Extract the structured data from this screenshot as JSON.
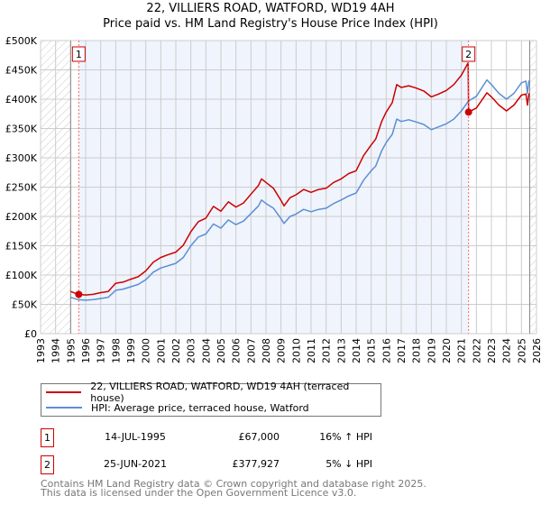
{
  "title_line1": "22, VILLIERS ROAD, WATFORD, WD19 4AH",
  "title_line2": "Price paid vs. HM Land Registry's House Price Index (HPI)",
  "legend": {
    "property": "22, VILLIERS ROAD, WATFORD, WD19 4AH (terraced house)",
    "hpi": "HPI: Average price, terraced house, Watford"
  },
  "transactions": [
    {
      "num": "1",
      "date": "14-JUL-1995",
      "price": "£67,000",
      "hpi_diff": "16% ↑ HPI"
    },
    {
      "num": "2",
      "date": "25-JUN-2021",
      "price": "£377,927",
      "hpi_diff": "5% ↓ HPI"
    }
  ],
  "footer": {
    "line1": "Contains HM Land Registry data © Crown copyright and database right 2025.",
    "line2": "This data is licensed under the Open Government Licence v3.0."
  },
  "colors": {
    "property": "#cc0000",
    "hpi": "#5b8fd4",
    "shade": "#f0f4fd"
  },
  "chart_data": {
    "type": "line",
    "title": "22, VILLIERS ROAD, WATFORD, WD19 4AH — Price paid vs. HM Land Registry's House Price Index (HPI)",
    "xlim": [
      1993,
      2026
    ],
    "ylim": [
      0,
      500000
    ],
    "x_ticks": [
      "1993",
      "1994",
      "1995",
      "1996",
      "1997",
      "1998",
      "1999",
      "2000",
      "2001",
      "2002",
      "2003",
      "2004",
      "2005",
      "2006",
      "2007",
      "2008",
      "2009",
      "2010",
      "2011",
      "2012",
      "2013",
      "2014",
      "2015",
      "2016",
      "2017",
      "2018",
      "2019",
      "2020",
      "2021",
      "2022",
      "2023",
      "2024",
      "2025",
      "2026"
    ],
    "y_ticks": [
      {
        "v": 0,
        "label": "£0"
      },
      {
        "v": 50000,
        "label": "£50K"
      },
      {
        "v": 100000,
        "label": "£100K"
      },
      {
        "v": 150000,
        "label": "£150K"
      },
      {
        "v": 200000,
        "label": "£200K"
      },
      {
        "v": 250000,
        "label": "£250K"
      },
      {
        "v": 300000,
        "label": "£300K"
      },
      {
        "v": 350000,
        "label": "£350K"
      },
      {
        "v": 400000,
        "label": "£400K"
      },
      {
        "v": 450000,
        "label": "£450K"
      },
      {
        "v": 500000,
        "label": "£500K"
      }
    ],
    "grid": true,
    "hatched_before": 1995.0,
    "hatched_after": 2025.55,
    "sales": [
      {
        "label": "1",
        "x": 1995.54,
        "y": 67000
      },
      {
        "label": "2",
        "x": 2021.48,
        "y": 377927
      }
    ],
    "series": [
      {
        "name": "22, VILLIERS ROAD, WATFORD, WD19 4AH (terraced house)",
        "points": [
          [
            1995,
            72
          ],
          [
            1995.5,
            67
          ],
          [
            1996,
            66
          ],
          [
            1996.5,
            67
          ],
          [
            1997,
            70
          ],
          [
            1997.5,
            72
          ],
          [
            1998,
            86
          ],
          [
            1998.5,
            88
          ],
          [
            1999,
            93
          ],
          [
            1999.5,
            97
          ],
          [
            2000,
            107
          ],
          [
            2000.5,
            122
          ],
          [
            2001,
            130
          ],
          [
            2001.5,
            135
          ],
          [
            2002,
            139
          ],
          [
            2002.5,
            151
          ],
          [
            2003,
            174
          ],
          [
            2003.5,
            191
          ],
          [
            2004,
            197
          ],
          [
            2004.5,
            217
          ],
          [
            2005,
            209
          ],
          [
            2005.5,
            225
          ],
          [
            2006,
            216
          ],
          [
            2006.5,
            223
          ],
          [
            2007,
            238
          ],
          [
            2007.5,
            253
          ],
          [
            2007.7,
            264
          ],
          [
            2008,
            258
          ],
          [
            2008.5,
            248
          ],
          [
            2009,
            227
          ],
          [
            2009.2,
            218
          ],
          [
            2009.6,
            232
          ],
          [
            2010,
            237
          ],
          [
            2010.5,
            246
          ],
          [
            2011,
            241
          ],
          [
            2011.5,
            246
          ],
          [
            2012,
            248
          ],
          [
            2012.5,
            258
          ],
          [
            2013,
            264
          ],
          [
            2013.5,
            273
          ],
          [
            2014,
            278
          ],
          [
            2014.5,
            304
          ],
          [
            2015,
            322
          ],
          [
            2015.3,
            332
          ],
          [
            2015.7,
            362
          ],
          [
            2016,
            378
          ],
          [
            2016.4,
            394
          ],
          [
            2016.7,
            425
          ],
          [
            2017,
            420
          ],
          [
            2017.5,
            423
          ],
          [
            2018,
            419
          ],
          [
            2018.5,
            414
          ],
          [
            2019,
            404
          ],
          [
            2019.5,
            409
          ],
          [
            2020,
            415
          ],
          [
            2020.5,
            425
          ],
          [
            2021,
            441
          ],
          [
            2021.45,
            462
          ],
          [
            2021.48,
            378
          ],
          [
            2022,
            385
          ],
          [
            2022.7,
            411
          ],
          [
            2023,
            404
          ],
          [
            2023.5,
            390
          ],
          [
            2024,
            380
          ],
          [
            2024.5,
            390
          ],
          [
            2025,
            407
          ],
          [
            2025.3,
            409
          ],
          [
            2025.4,
            390
          ],
          [
            2025.5,
            410
          ]
        ],
        "unit": "thousand GBP"
      },
      {
        "name": "HPI: Average price, terraced house, Watford",
        "points": [
          [
            1995,
            62
          ],
          [
            1995.5,
            58
          ],
          [
            1996,
            57
          ],
          [
            1996.5,
            58
          ],
          [
            1997,
            60
          ],
          [
            1997.5,
            62
          ],
          [
            1998,
            74
          ],
          [
            1998.5,
            76
          ],
          [
            1999,
            80
          ],
          [
            1999.5,
            84
          ],
          [
            2000,
            92
          ],
          [
            2000.5,
            105
          ],
          [
            2001,
            112
          ],
          [
            2001.5,
            116
          ],
          [
            2002,
            120
          ],
          [
            2002.5,
            130
          ],
          [
            2003,
            150
          ],
          [
            2003.5,
            165
          ],
          [
            2004,
            170
          ],
          [
            2004.5,
            187
          ],
          [
            2005,
            180
          ],
          [
            2005.5,
            194
          ],
          [
            2006,
            186
          ],
          [
            2006.5,
            192
          ],
          [
            2007,
            205
          ],
          [
            2007.5,
            218
          ],
          [
            2007.7,
            228
          ],
          [
            2008,
            222
          ],
          [
            2008.5,
            214
          ],
          [
            2009,
            196
          ],
          [
            2009.2,
            188
          ],
          [
            2009.6,
            200
          ],
          [
            2010,
            204
          ],
          [
            2010.5,
            212
          ],
          [
            2011,
            208
          ],
          [
            2011.5,
            212
          ],
          [
            2012,
            214
          ],
          [
            2012.5,
            222
          ],
          [
            2013,
            228
          ],
          [
            2013.5,
            235
          ],
          [
            2014,
            240
          ],
          [
            2014.5,
            262
          ],
          [
            2015,
            278
          ],
          [
            2015.3,
            286
          ],
          [
            2015.7,
            312
          ],
          [
            2016,
            326
          ],
          [
            2016.4,
            340
          ],
          [
            2016.7,
            366
          ],
          [
            2017,
            362
          ],
          [
            2017.5,
            365
          ],
          [
            2018,
            361
          ],
          [
            2018.5,
            357
          ],
          [
            2019,
            348
          ],
          [
            2019.5,
            353
          ],
          [
            2020,
            358
          ],
          [
            2020.5,
            366
          ],
          [
            2021,
            380
          ],
          [
            2021.48,
            397
          ],
          [
            2022,
            405
          ],
          [
            2022.7,
            433
          ],
          [
            2023,
            425
          ],
          [
            2023.5,
            410
          ],
          [
            2024,
            400
          ],
          [
            2024.5,
            410
          ],
          [
            2025,
            428
          ],
          [
            2025.3,
            431
          ],
          [
            2025.4,
            410
          ],
          [
            2025.5,
            432
          ]
        ],
        "unit": "thousand GBP"
      }
    ]
  }
}
